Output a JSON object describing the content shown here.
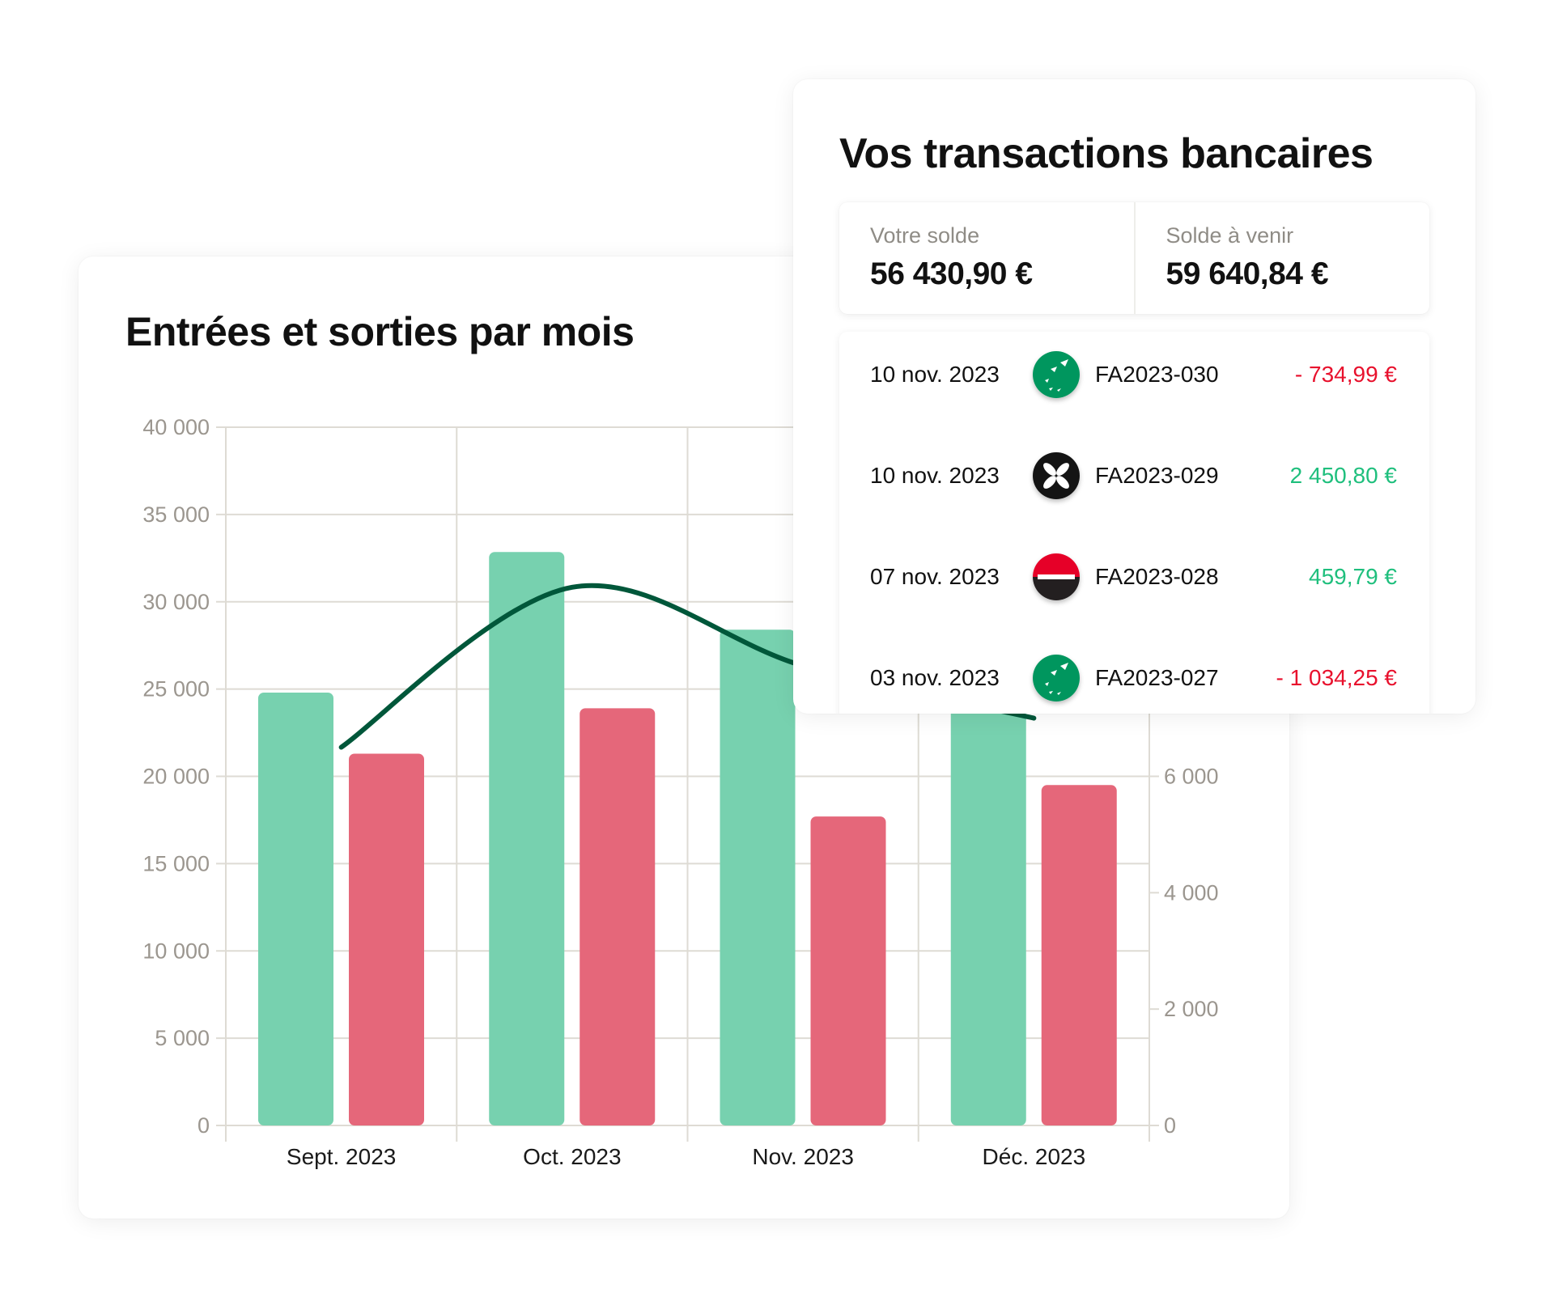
{
  "chart_card": {
    "title": "Entrées et sorties par mois"
  },
  "chart_data": {
    "type": "bar",
    "title": "Entrées et sorties par mois",
    "categories": [
      "Sept. 2023",
      "Oct. 2023",
      "Nov. 2023",
      "Déc. 2023"
    ],
    "series": [
      {
        "type": "bar",
        "axis": "left",
        "color": "#77d1af",
        "values": [
          24800,
          32850,
          28400,
          26000
        ]
      },
      {
        "type": "bar",
        "axis": "left",
        "color": "#e5677a",
        "values": [
          21300,
          23900,
          17700,
          19500
        ]
      },
      {
        "type": "line",
        "axis": "right",
        "color": "#00573a",
        "values": [
          6500,
          9250,
          7900,
          7000
        ]
      }
    ],
    "y_left": {
      "lim": [
        0,
        40000
      ],
      "ticks": [
        "0",
        "5 000",
        "10 000",
        "15 000",
        "20 000",
        "25 000",
        "30 000",
        "35 000",
        "40 000"
      ],
      "tick_values": [
        0,
        5000,
        10000,
        15000,
        20000,
        25000,
        30000,
        35000,
        40000
      ]
    },
    "y_right": {
      "lim": [
        0,
        12000
      ],
      "ticks": [
        "0",
        "2 000",
        "4 000",
        "6 000"
      ],
      "tick_values": [
        0,
        2000,
        4000,
        6000
      ]
    },
    "grid": true,
    "legend": "none",
    "colors": {
      "grid": "#dedbd4",
      "tick_text": "#9b968f",
      "category_text": "#1a1a1a"
    }
  },
  "transactions_card": {
    "title": "Vos transactions bancaires",
    "balance": {
      "label": "Votre solde",
      "value": "56 430,90 €"
    },
    "upcoming": {
      "label": "Solde à venir",
      "value": "59 640,84 €"
    },
    "rows": [
      {
        "date": "10 nov. 2023",
        "bank_icon": "bnp-stars-icon",
        "reference": "FA2023-030",
        "amount": "- 734,99 €",
        "color": "#e8112d"
      },
      {
        "date": "10 nov. 2023",
        "bank_icon": "qonto-flower-icon",
        "reference": "FA2023-029",
        "amount": "2 450,80 €",
        "color": "#1fbf7d"
      },
      {
        "date": "07 nov. 2023",
        "bank_icon": "societe-generale-icon",
        "reference": "FA2023-028",
        "amount": "459,79 €",
        "color": "#1fbf7d"
      },
      {
        "date": "03 nov. 2023",
        "bank_icon": "bnp-stars-icon",
        "reference": "FA2023-027",
        "amount": "- 1 034,25 €",
        "color": "#e8112d"
      }
    ]
  }
}
